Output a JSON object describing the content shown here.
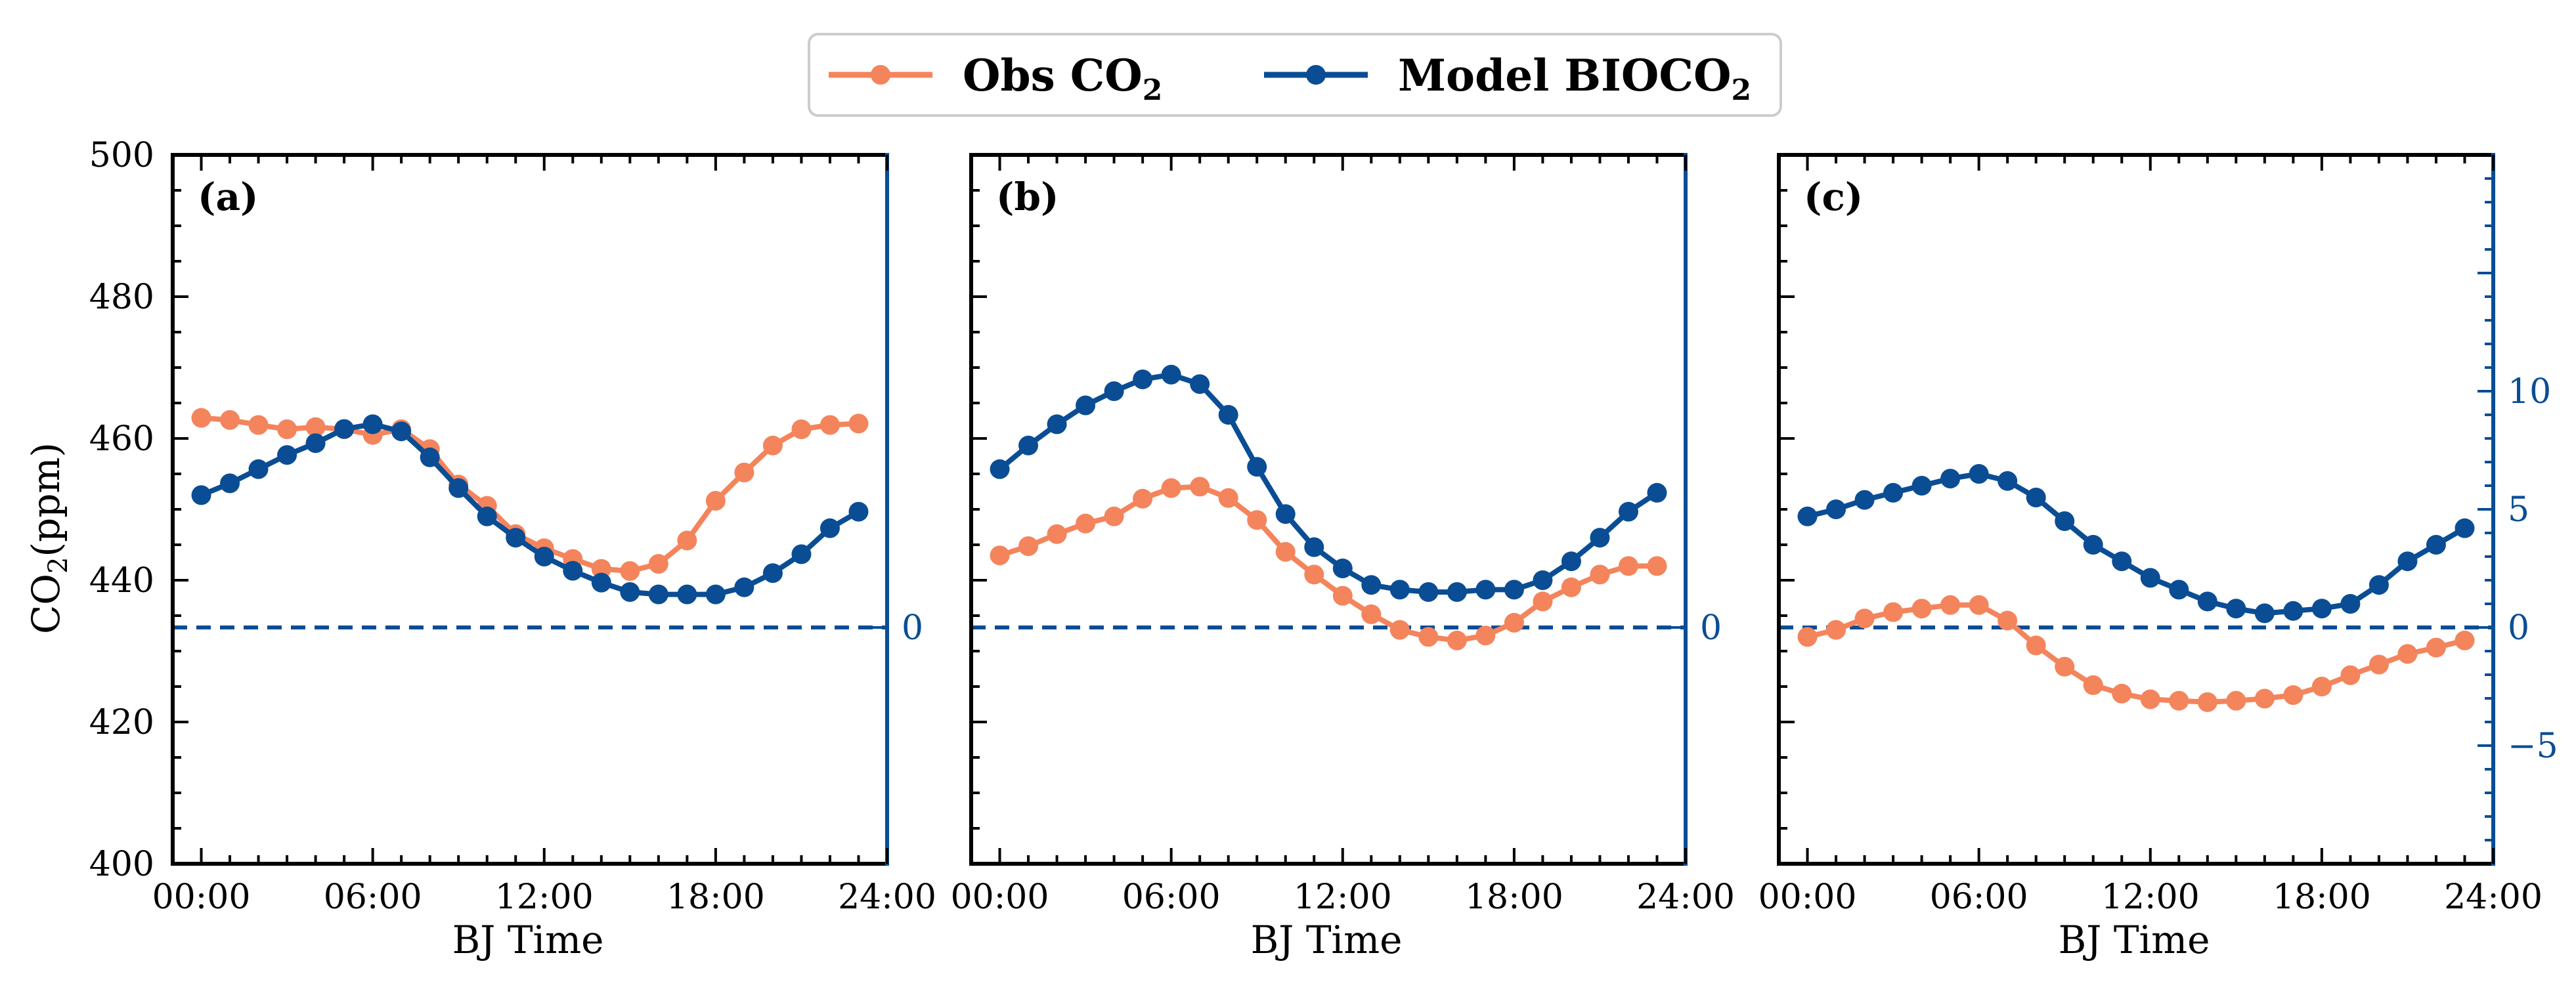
{
  "colors": {
    "obs": "#F4845C",
    "model": "#0A4D94",
    "axis": "#000000",
    "right_axis": "#0A4D94"
  },
  "legend": {
    "obs_label": "Obs CO",
    "obs_sub": "2",
    "model_label": "Model BIOCO",
    "model_sub": "2"
  },
  "axes": {
    "ylabel_main": "CO",
    "ylabel_sub": "2",
    "ylabel_unit": "(ppm)",
    "xlabel": "BJ Time",
    "xtick_labels": [
      "00:00",
      "06:00",
      "12:00",
      "18:00",
      "24:00"
    ],
    "xtick_values": [
      0,
      6,
      12,
      18,
      24
    ],
    "yleft_ticks": [
      400,
      420,
      440,
      460,
      480,
      500
    ],
    "yleft_tick_labels": [
      "400",
      "420",
      "440",
      "460",
      "480",
      "500"
    ],
    "yleft_lim": [
      400,
      500
    ],
    "yright_lim": [
      -10,
      20
    ],
    "xlim": [
      -1,
      24
    ]
  },
  "chart_data": [
    {
      "type": "line",
      "panel_label": "(a)",
      "right_ticks": [
        0
      ],
      "right_tick_labels": [
        "0"
      ],
      "x": [
        0,
        1,
        2,
        3,
        4,
        5,
        6,
        7,
        8,
        9,
        10,
        11,
        12,
        13,
        14,
        15,
        16,
        17,
        18,
        19,
        20,
        21,
        22,
        23
      ],
      "series": [
        {
          "name": "Obs CO2",
          "axis": "left",
          "values": [
            462.9,
            462.6,
            461.9,
            461.3,
            461.6,
            461.3,
            460.5,
            461.3,
            458.5,
            453.5,
            450.5,
            446.5,
            444.5,
            443.0,
            441.6,
            441.3,
            442.3,
            445.6,
            451.2,
            455.2,
            459.0,
            461.3,
            461.9,
            462.1
          ]
        },
        {
          "name": "Model BIOCO2",
          "axis": "right",
          "values": [
            5.6,
            6.1,
            6.7,
            7.3,
            7.8,
            8.4,
            8.6,
            8.3,
            7.2,
            5.9,
            4.7,
            3.8,
            3.0,
            2.4,
            1.9,
            1.5,
            1.4,
            1.4,
            1.4,
            1.7,
            2.3,
            3.1,
            4.2,
            4.9
          ]
        }
      ]
    },
    {
      "type": "line",
      "panel_label": "(b)",
      "right_ticks": [
        0
      ],
      "right_tick_labels": [
        "0"
      ],
      "x": [
        0,
        1,
        2,
        3,
        4,
        5,
        6,
        7,
        8,
        9,
        10,
        11,
        12,
        13,
        14,
        15,
        16,
        17,
        18,
        19,
        20,
        21,
        22,
        23
      ],
      "series": [
        {
          "name": "Obs CO2",
          "axis": "left",
          "values": [
            443.5,
            444.8,
            446.5,
            448.0,
            449.0,
            451.5,
            453.0,
            453.2,
            451.6,
            448.5,
            444.0,
            440.8,
            437.8,
            435.2,
            433.0,
            432.0,
            431.5,
            432.2,
            434.0,
            437.0,
            439.0,
            440.8,
            442.0,
            442.0
          ]
        },
        {
          "name": "Model BIOCO2",
          "axis": "right",
          "values": [
            6.7,
            7.7,
            8.6,
            9.4,
            10.0,
            10.5,
            10.7,
            10.3,
            9.0,
            6.8,
            4.8,
            3.4,
            2.5,
            1.8,
            1.6,
            1.5,
            1.5,
            1.6,
            1.6,
            2.0,
            2.8,
            3.8,
            4.9,
            5.7
          ]
        }
      ]
    },
    {
      "type": "line",
      "panel_label": "(c)",
      "right_ticks": [
        -5,
        0,
        5,
        10
      ],
      "right_tick_labels": [
        "−5",
        "0",
        "5",
        "10"
      ],
      "x": [
        0,
        1,
        2,
        3,
        4,
        5,
        6,
        7,
        8,
        9,
        10,
        11,
        12,
        13,
        14,
        15,
        16,
        17,
        18,
        19,
        20,
        21,
        22,
        23
      ],
      "series": [
        {
          "name": "Obs CO2",
          "axis": "left",
          "values": [
            432.0,
            433.0,
            434.6,
            435.5,
            436.0,
            436.5,
            436.5,
            434.3,
            430.8,
            427.8,
            425.2,
            424.0,
            423.2,
            423.0,
            422.8,
            423.0,
            423.3,
            423.8,
            425.0,
            426.6,
            428.1,
            429.6,
            430.5,
            431.5
          ]
        },
        {
          "name": "Model BIOCO2",
          "axis": "right",
          "values": [
            4.7,
            5.0,
            5.4,
            5.7,
            6.0,
            6.3,
            6.5,
            6.2,
            5.5,
            4.5,
            3.5,
            2.8,
            2.1,
            1.6,
            1.1,
            0.8,
            0.6,
            0.7,
            0.8,
            1.0,
            1.8,
            2.8,
            3.5,
            4.2
          ]
        }
      ]
    }
  ]
}
